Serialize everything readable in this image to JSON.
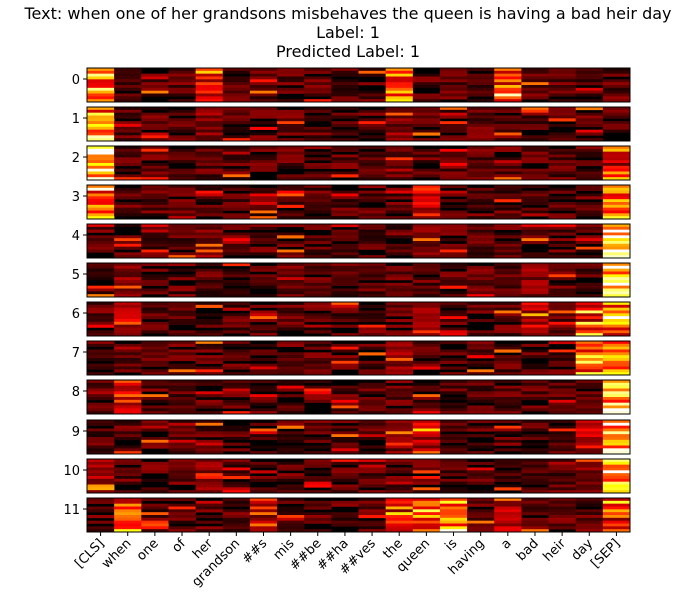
{
  "chart_data": {
    "type": "heatmap",
    "title_lines": [
      "Text: when one of her grandsons misbehaves the queen is having a bad heir day",
      "Label: 1",
      "Predicted Label: 1"
    ],
    "rows": [
      "0",
      "1",
      "2",
      "3",
      "4",
      "5",
      "6",
      "7",
      "8",
      "9",
      "10",
      "11"
    ],
    "tokens": [
      "[CLS]",
      "when",
      "one",
      "of",
      "her",
      "grandson",
      "##s",
      "mis",
      "##be",
      "##ha",
      "##ves",
      "the",
      "queen",
      "is",
      "having",
      "a",
      "bad",
      "heir",
      "day",
      "[SEP]"
    ],
    "colormap": "hot",
    "panel_heatmaps": "12 per-layer attention heatmaps; each panel has token columns and several sub-rows of attention intensity"
  }
}
